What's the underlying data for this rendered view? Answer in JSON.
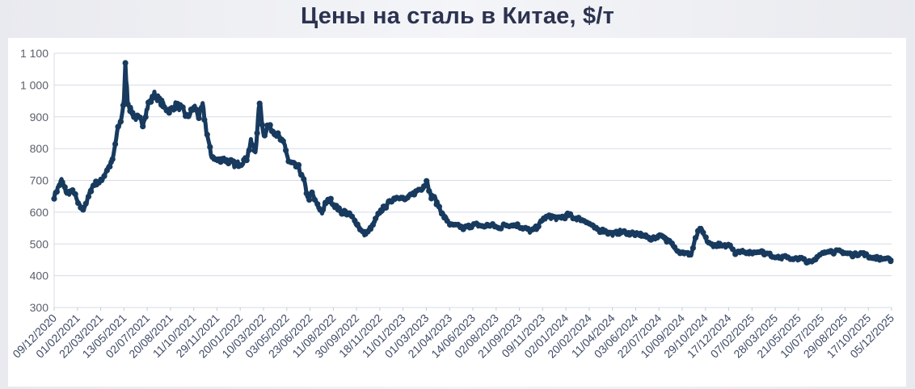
{
  "chart_data": {
    "type": "line",
    "title": "Цены на сталь в Китае, $/т",
    "xlabel": "",
    "ylabel": "",
    "ylim": [
      300,
      1100
    ],
    "yticks": [
      300,
      400,
      500,
      600,
      700,
      800,
      900,
      1000,
      1100
    ],
    "ytick_labels": [
      "300",
      "400",
      "500",
      "600",
      "700",
      "800",
      "900",
      "1 000",
      "1 100"
    ],
    "xlim": [
      "2020-12-09",
      "2025-12-05"
    ],
    "xtick_labels": [
      "09/12/2020",
      "01/02/2021",
      "22/03/2021",
      "13/05/2021",
      "02/07/2021",
      "20/08/2021",
      "11/10/2021",
      "29/11/2021",
      "20/01/2022",
      "10/03/2022",
      "03/05/2022",
      "23/06/2022",
      "11/08/2022",
      "30/09/2022",
      "18/11/2022",
      "11/01/2023",
      "01/03/2023",
      "21/04/2023",
      "14/06/2023",
      "02/08/2023",
      "21/09/2023",
      "09/11/2023",
      "02/01/2024",
      "20/02/2024",
      "11/04/2024",
      "03/06/2024",
      "22/07/2024",
      "10/09/2024",
      "29/10/2024",
      "17/12/2024",
      "07/02/2025",
      "28/03/2025",
      "21/05/2025",
      "10/07/2025",
      "29/08/2025",
      "17/10/2025",
      "05/12/2025"
    ],
    "grid": true,
    "legend": "none",
    "series": [
      {
        "color": "#173a5e",
        "x": [
          "2020-12-09",
          "2020-12-25",
          "2021-01-05",
          "2021-01-20",
          "2021-02-01",
          "2021-02-10",
          "2021-02-20",
          "2021-03-01",
          "2021-03-10",
          "2021-03-22",
          "2021-04-05",
          "2021-04-15",
          "2021-04-25",
          "2021-05-05",
          "2021-05-10",
          "2021-05-13",
          "2021-05-18",
          "2021-05-25",
          "2021-06-01",
          "2021-06-10",
          "2021-06-20",
          "2021-07-02",
          "2021-07-15",
          "2021-07-25",
          "2021-08-05",
          "2021-08-20",
          "2021-09-01",
          "2021-09-15",
          "2021-09-25",
          "2021-10-11",
          "2021-10-20",
          "2021-10-28",
          "2021-11-05",
          "2021-11-15",
          "2021-11-29",
          "2021-12-10",
          "2021-12-25",
          "2022-01-05",
          "2022-01-20",
          "2022-02-01",
          "2022-02-10",
          "2022-02-20",
          "2022-03-01",
          "2022-03-10",
          "2022-03-18",
          "2022-03-28",
          "2022-04-10",
          "2022-04-25",
          "2022-05-03",
          "2022-05-12",
          "2022-05-25",
          "2022-06-05",
          "2022-06-15",
          "2022-06-23",
          "2022-07-05",
          "2022-07-15",
          "2022-07-22",
          "2022-08-01",
          "2022-08-11",
          "2022-08-25",
          "2022-09-05",
          "2022-09-20",
          "2022-09-30",
          "2022-10-15",
          "2022-10-30",
          "2022-11-10",
          "2022-11-18",
          "2022-12-01",
          "2022-12-15",
          "2022-12-30",
          "2023-01-11",
          "2023-01-25",
          "2023-02-10",
          "2023-02-20",
          "2023-03-01",
          "2023-03-08",
          "2023-03-15",
          "2023-03-25",
          "2023-04-05",
          "2023-04-21",
          "2023-05-05",
          "2023-05-20",
          "2023-06-14",
          "2023-07-01",
          "2023-07-15",
          "2023-08-02",
          "2023-08-20",
          "2023-09-05",
          "2023-09-21",
          "2023-10-10",
          "2023-10-25",
          "2023-11-09",
          "2023-11-25",
          "2023-12-10",
          "2024-01-02",
          "2024-01-20",
          "2024-02-05",
          "2024-02-20",
          "2024-03-05",
          "2024-03-20",
          "2024-04-11",
          "2024-04-25",
          "2024-05-10",
          "2024-06-03",
          "2024-06-20",
          "2024-07-05",
          "2024-07-22",
          "2024-08-05",
          "2024-08-20",
          "2024-09-01",
          "2024-09-10",
          "2024-09-25",
          "2024-10-01",
          "2024-10-08",
          "2024-10-15",
          "2024-10-29",
          "2024-11-10",
          "2024-11-25",
          "2024-12-05",
          "2024-12-17",
          "2025-01-01",
          "2025-01-15",
          "2025-01-25",
          "2025-02-07",
          "2025-02-20",
          "2025-03-05",
          "2025-03-15",
          "2025-03-28",
          "2025-04-10",
          "2025-04-25",
          "2025-05-05",
          "2025-05-21",
          "2025-06-05",
          "2025-06-20",
          "2025-07-10",
          "2025-07-20",
          "2025-08-01",
          "2025-08-15",
          "2025-08-29",
          "2025-09-15",
          "2025-10-01",
          "2025-10-17",
          "2025-11-01",
          "2025-11-15",
          "2025-12-05"
        ],
        "y": [
          650,
          700,
          660,
          665,
          620,
          610,
          640,
          680,
          690,
          700,
          740,
          760,
          850,
          900,
          960,
          1060,
          950,
          920,
          900,
          895,
          880,
          940,
          970,
          955,
          930,
          920,
          940,
          920,
          900,
          930,
          900,
          935,
          860,
          780,
          760,
          770,
          760,
          750,
          755,
          770,
          820,
          790,
          950,
          840,
          870,
          860,
          840,
          810,
          760,
          750,
          740,
          700,
          640,
          660,
          620,
          600,
          625,
          640,
          620,
          600,
          600,
          580,
          560,
          530,
          550,
          580,
          600,
          620,
          640,
          650,
          640,
          650,
          670,
          680,
          700,
          650,
          650,
          620,
          590,
          560,
          555,
          550,
          560,
          555,
          560,
          550,
          560,
          560,
          555,
          540,
          550,
          580,
          585,
          580,
          590,
          580,
          575,
          560,
          545,
          540,
          530,
          540,
          535,
          530,
          520,
          515,
          530,
          510,
          490,
          475,
          470,
          465,
          500,
          530,
          550,
          510,
          495,
          500,
          490,
          500,
          470,
          480,
          475,
          470,
          480,
          470,
          465,
          460,
          455,
          460,
          450,
          455,
          445,
          450,
          470,
          480,
          475,
          475,
          470,
          465,
          470,
          460,
          455,
          455,
          450
        ]
      }
    ]
  }
}
